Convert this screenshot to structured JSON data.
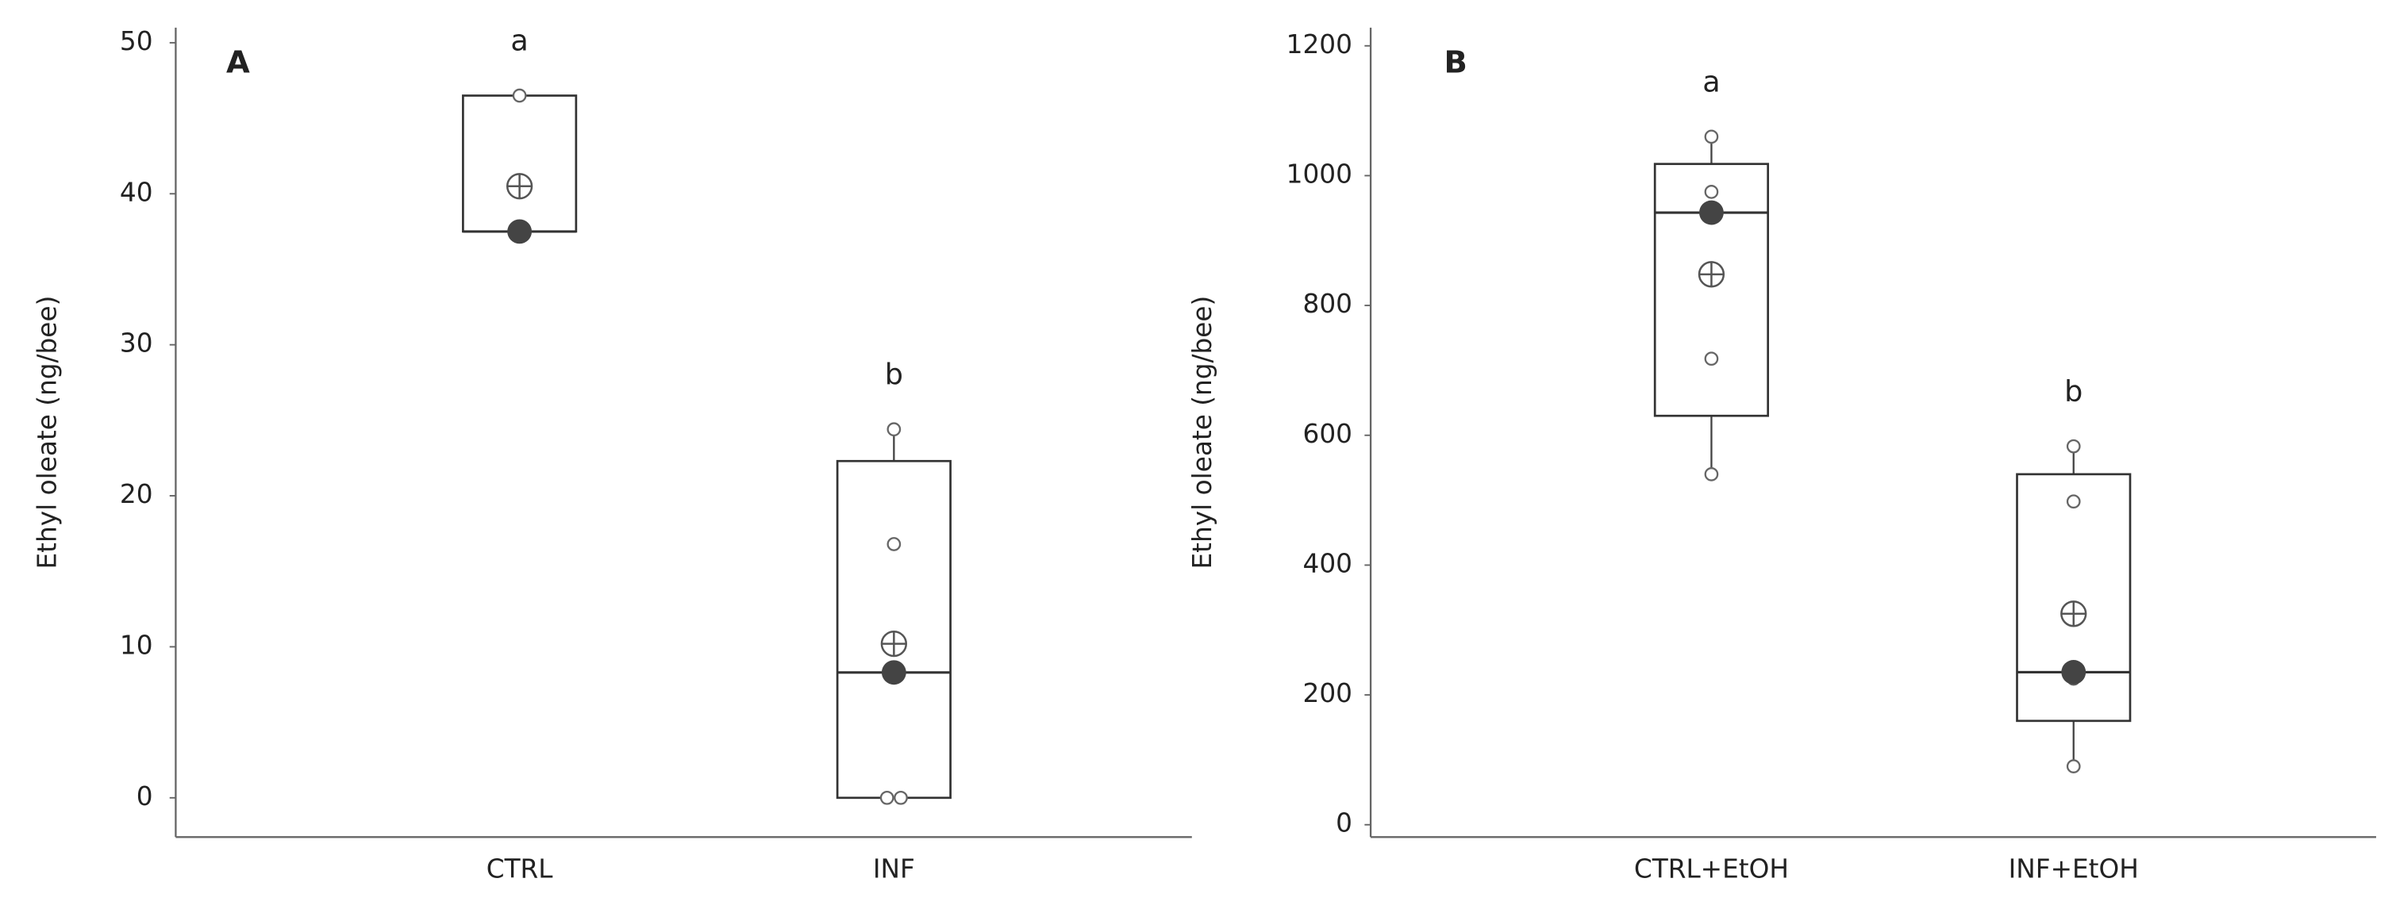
{
  "chart_data": [
    {
      "type": "box",
      "panel_label": "A",
      "ylabel": "Ethyl oleate (ng/bee)",
      "categories": [
        "CTRL",
        "INF"
      ],
      "ylim": [
        -2.6,
        51
      ],
      "yticks": [
        0,
        10,
        20,
        30,
        40,
        50
      ],
      "boxes": [
        {
          "q1": 37.5,
          "median": 37.5,
          "q3": 46.5,
          "mean": 40.5,
          "points": [
            46.5,
            37.5
          ],
          "letter": "a"
        },
        {
          "q1": 0,
          "median": 8.3,
          "q3": 22.3,
          "whisker_low": 0,
          "whisker_high": 24.4,
          "mean": 10.2,
          "points": [
            24.4,
            16.8,
            8.3,
            0,
            0
          ],
          "letter": "b"
        }
      ]
    },
    {
      "type": "box",
      "panel_label": "B",
      "ylabel": "Ethyl oleate (ng/bee)",
      "categories": [
        "CTRL+EtOH",
        "INF+EtOH"
      ],
      "ylim": [
        -19,
        1228
      ],
      "yticks": [
        0,
        200,
        400,
        600,
        800,
        1000,
        1200
      ],
      "boxes": [
        {
          "q1": 630,
          "median": 943,
          "q3": 1018,
          "whisker_low": 540,
          "whisker_high": 1060,
          "mean": 848,
          "points": [
            1060,
            975,
            940,
            718,
            540
          ],
          "letter": "a"
        },
        {
          "q1": 160,
          "median": 235,
          "q3": 540,
          "whisker_low": 90,
          "whisker_high": 583,
          "mean": 325,
          "points": [
            583,
            498,
            235,
            225,
            90
          ],
          "letter": "b"
        }
      ]
    }
  ]
}
